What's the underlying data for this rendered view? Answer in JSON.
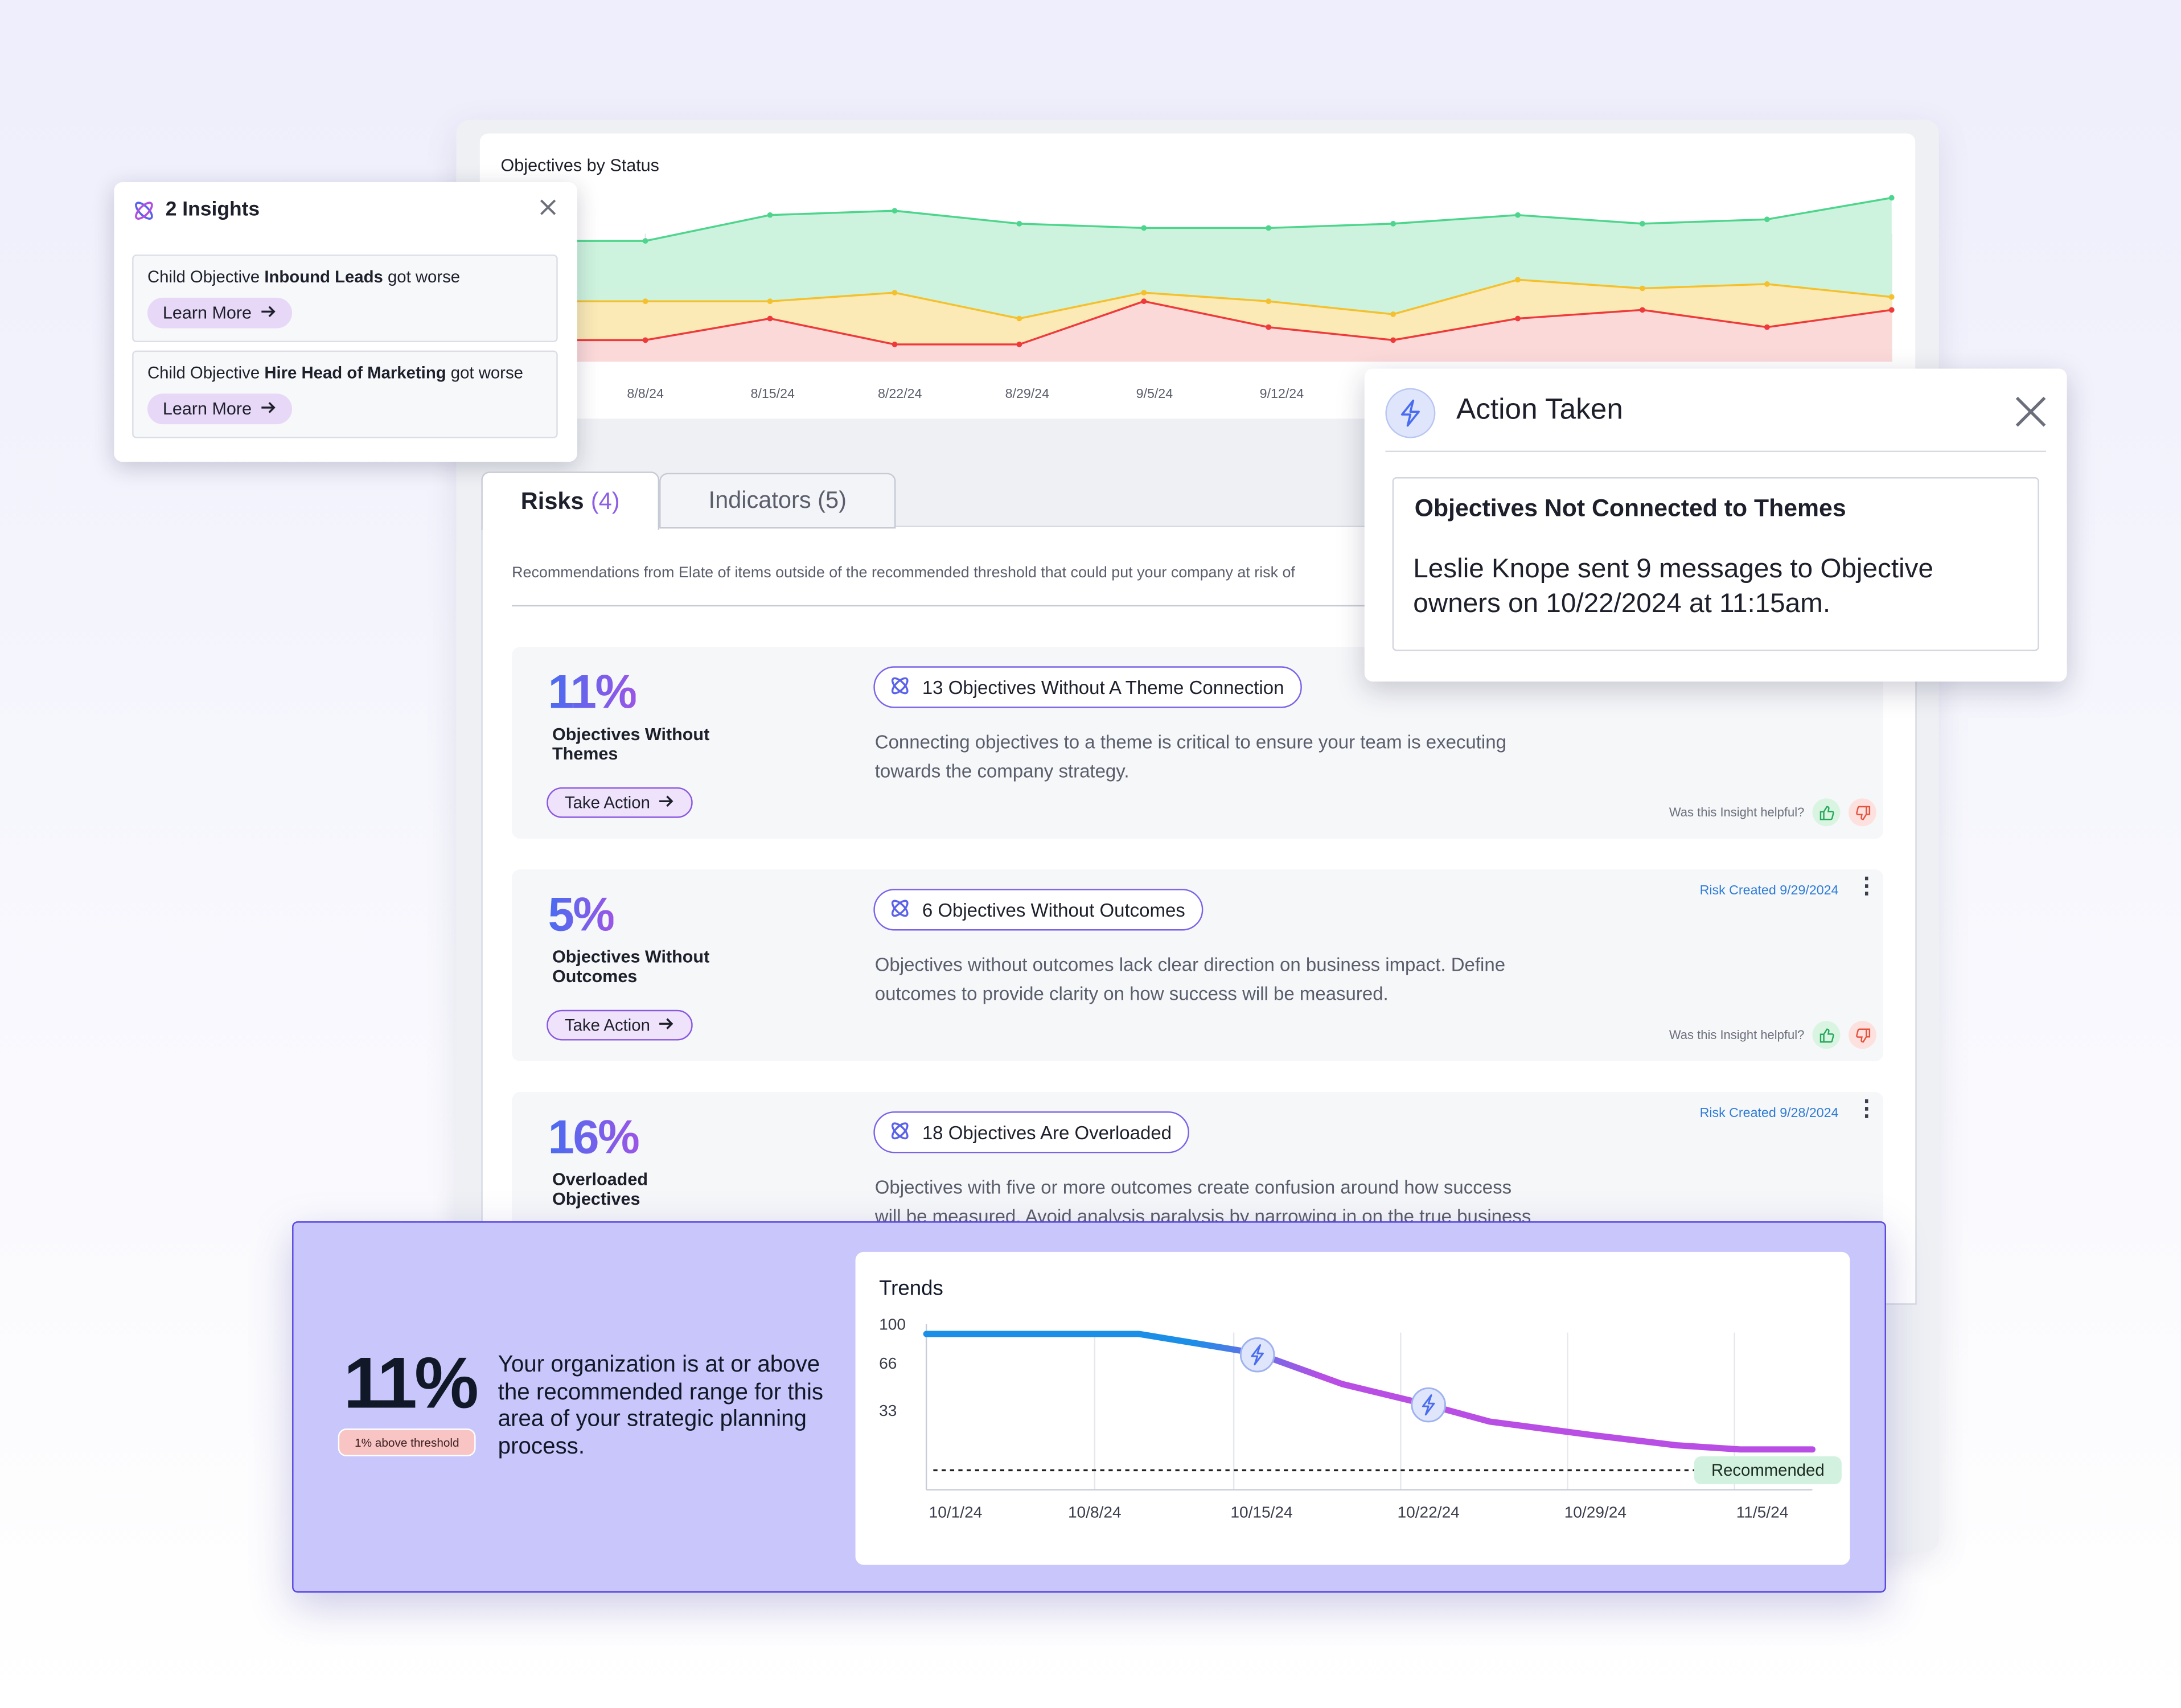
{
  "status_chart": {
    "title": "Objectives by Status",
    "x_labels": [
      "8/8/24",
      "8/15/24",
      "8/22/24",
      "8/29/24",
      "9/5/24",
      "9/12/24"
    ],
    "colors": {
      "on_track": "#4ed58d",
      "at_risk": "#f5c02e",
      "off_track": "#ee3a3a"
    },
    "chart_data": {
      "type": "area",
      "x": [
        "",
        "",
        "",
        "",
        "",
        "",
        "",
        "",
        "",
        "",
        ""
      ],
      "series": [
        {
          "values": [
            28,
            34,
            35,
            32,
            31,
            31,
            32,
            34,
            32,
            33,
            38
          ]
        },
        {
          "values": [
            14,
            14,
            16,
            10,
            16,
            14,
            11,
            19,
            17,
            18,
            15
          ]
        },
        {
          "values": [
            5,
            10,
            4,
            4,
            14,
            8,
            5,
            10,
            12,
            8,
            12
          ]
        }
      ]
    }
  },
  "insights_popup": {
    "title": "2 Insights",
    "items": [
      {
        "prefix": "Child Objective ",
        "bold": "Inbound Leads",
        "suffix": " got worse",
        "button": "Learn More"
      },
      {
        "prefix": "Child Objective ",
        "bold": "Hire Head of Marketing",
        "suffix": " got worse",
        "button": "Learn More"
      }
    ]
  },
  "tabs": [
    {
      "label": "Risks",
      "count": "(4)"
    },
    {
      "label": "Indicators (5)"
    }
  ],
  "tabs_description": "Recommendations from Elate of items outside of the recommended threshold that could put your company at risk of",
  "risks": [
    {
      "percent": "11%",
      "label": "Objectives Without Themes",
      "action": "Take Action",
      "pill": "13 Objectives Without A Theme Connection",
      "description": "Connecting objectives to a theme is critical to ensure your team is executing towards the company strategy.",
      "helpful": "Was this Insight helpful?",
      "created": ""
    },
    {
      "percent": "5%",
      "label": "Objectives Without Outcomes",
      "action": "Take Action",
      "pill": "6 Objectives Without Outcomes",
      "description": "Objectives without outcomes lack clear direction on business impact. Define outcomes to provide clarity on how success will be measured.",
      "helpful": "Was this Insight helpful?",
      "created": "Risk Created 9/29/2024"
    },
    {
      "percent": "16%",
      "label": "Overloaded Objectives",
      "action": "",
      "pill": "18 Objectives Are Overloaded",
      "description": "Objectives with five or more outcomes create confusion around how success will be measured. Avoid analysis paralysis by narrowing in on the true business",
      "helpful": "",
      "created": "Risk Created 9/28/2024"
    }
  ],
  "action_popup": {
    "title": "Action Taken",
    "heading": "Objectives Not Connected to Themes",
    "message": "Leslie Knope sent 9 messages to Objective owners on 10/22/2024 at 11:15am."
  },
  "banner": {
    "percent": "11%",
    "badge": "1% above threshold",
    "text": "Your organization is at or above the recommended range for this area of your strategic planning process."
  },
  "trends_chart": {
    "title": "Trends",
    "recommended_label": "Recommended",
    "chart_data": {
      "type": "line",
      "x": [
        "10/1/24",
        "10/4/24",
        "10/8/24",
        "10/11/24",
        "10/15/24",
        "10/19/24",
        "10/22/24",
        "10/24/24",
        "10/29/24",
        "11/2/24",
        "11/5/24",
        "11/7/24"
      ],
      "x_ticks": [
        "10/1/24",
        "10/8/24",
        "10/15/24",
        "10/22/24",
        "10/29/24",
        "11/5/24"
      ],
      "y_ticks": [
        100,
        66,
        33
      ],
      "series": [
        {
          "values": [
            100,
            100,
            100,
            100,
            87,
            65,
            47,
            36,
            30,
            25,
            20,
            20
          ]
        }
      ],
      "recommended": 2,
      "action_markers": [
        "10/15/24",
        "10/22/24"
      ],
      "colors": {
        "start": "#1b8ee8",
        "end": "#b94ee4"
      }
    }
  }
}
